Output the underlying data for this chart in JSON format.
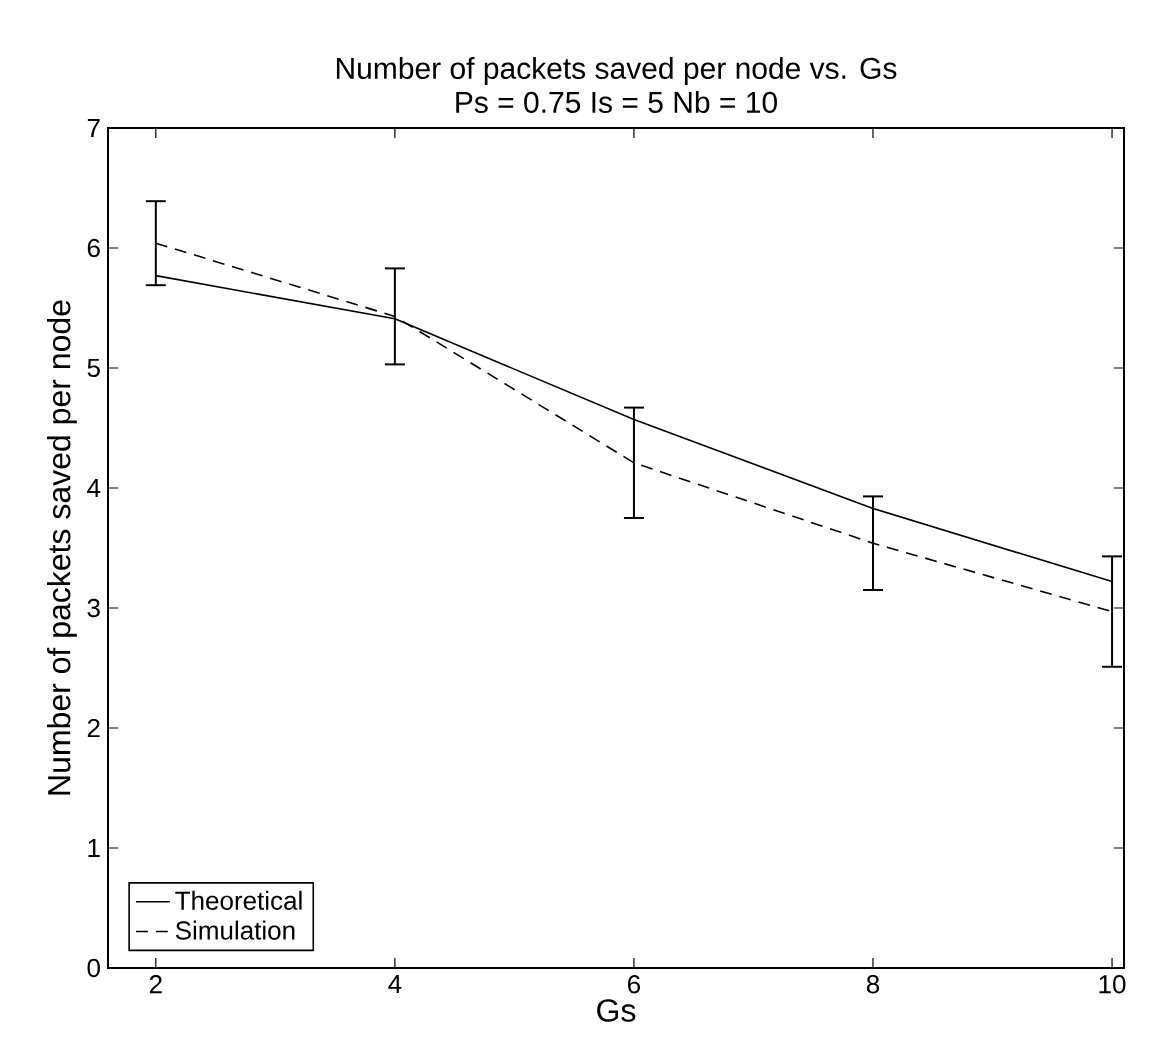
{
  "chart_data": {
    "type": "line",
    "title": "Number of packets saved per node  vs. Gs",
    "subtitle": "Ps = 0.75 Is = 5 Nb = 10",
    "xlabel": "Gs",
    "ylabel": "Number of packets saved per node",
    "x": [
      2,
      4,
      6,
      8,
      10
    ],
    "series": [
      {
        "name": "Theoretical",
        "color": "#000000",
        "line_style": "solid",
        "values": [
          5.77,
          5.41,
          4.57,
          3.83,
          3.22
        ]
      },
      {
        "name": "Simulation",
        "color": "#000000",
        "line_style": "dashed",
        "values": [
          6.04,
          5.43,
          4.21,
          3.54,
          2.97
        ],
        "errors": [
          0.35,
          0.4,
          0.46,
          0.39,
          0.46
        ]
      }
    ],
    "xlim": [
      1.6,
      10.1
    ],
    "ylim": [
      0,
      7
    ],
    "xticks": [
      2,
      4,
      6,
      8,
      10
    ],
    "yticks": [
      0,
      1,
      2,
      3,
      4,
      5,
      6,
      7
    ],
    "grid": false,
    "legend": "bottom left",
    "marker": "none"
  }
}
